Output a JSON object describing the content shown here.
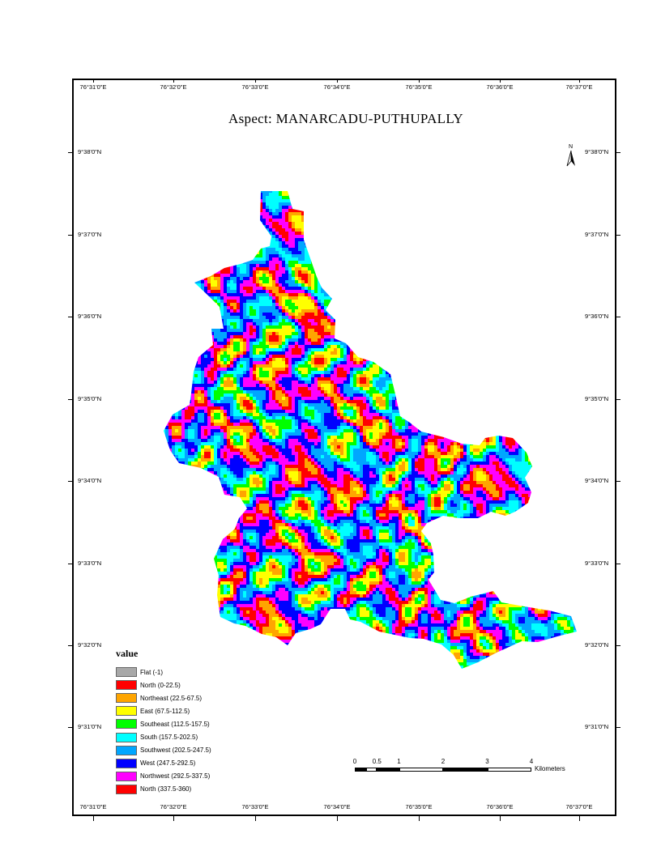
{
  "map": {
    "title": "Aspect: MANARCADU-PUTHUPALLY",
    "north_label": "N",
    "longitude_ticks": [
      "76°31'0\"E",
      "76°32'0\"E",
      "76°33'0\"E",
      "76°34'0\"E",
      "76°35'0\"E",
      "76°36'0\"E",
      "76°37'0\"E"
    ],
    "latitude_ticks_left": [
      "9°38'0\"N",
      "9°37'0\"N",
      "9°36'0\"N",
      "9°35'0\"N",
      "9°34'0\"N",
      "9°33'0\"N",
      "9°32'0\"N",
      "9°31'0\"N"
    ],
    "latitude_ticks_right": [
      "9°38'0\"N",
      "9°37'0\"N",
      "9°36'0\"N",
      "9°35'0\"N",
      "9°34'0\"N",
      "9°33'0\"N",
      "9°32'0\"N",
      "9°31'0\"N"
    ]
  },
  "legend": {
    "title": "value",
    "items": [
      {
        "label": "Flat (-1)",
        "color": "#a8a8a8"
      },
      {
        "label": "North (0-22.5)",
        "color": "#ff0000"
      },
      {
        "label": "Northeast (22.5-67.5)",
        "color": "#ffa500"
      },
      {
        "label": "East (67.5-112.5)",
        "color": "#ffff00"
      },
      {
        "label": "Southeast (112.5-157.5)",
        "color": "#00ff00"
      },
      {
        "label": "South (157.5-202.5)",
        "color": "#00ffff"
      },
      {
        "label": "Southwest (202.5-247.5)",
        "color": "#00a6ff"
      },
      {
        "label": "West (247.5-292.5)",
        "color": "#0000ff"
      },
      {
        "label": "Northwest (292.5-337.5)",
        "color": "#ff00ff"
      },
      {
        "label": "North (337.5-360)",
        "color": "#ff0000"
      }
    ]
  },
  "scale_bar": {
    "labels": [
      "0",
      "0.5",
      "1",
      "2",
      "3",
      "4"
    ],
    "values": [
      0,
      0.5,
      1,
      2,
      3,
      4
    ],
    "unit": "Kilometers"
  }
}
